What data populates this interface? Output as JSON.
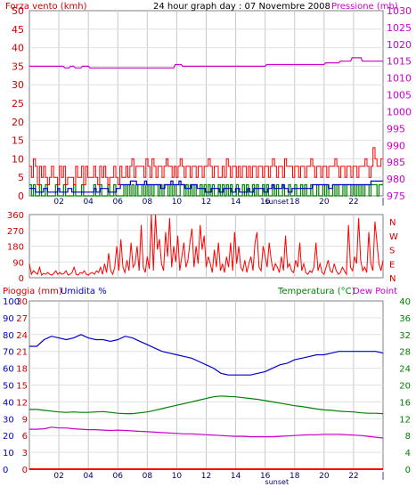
{
  "chart_data": [
    {
      "type": "line",
      "title": "24 hour graph day : 07 Novembre 2008",
      "left_axis_label": "Forza vento (kmh)",
      "right_axis_label": "Pressione (mb)",
      "left_ticks": [
        "0",
        "5",
        "10",
        "15",
        "20",
        "25",
        "30",
        "35",
        "40",
        "45",
        "50"
      ],
      "left_range": [
        0,
        50
      ],
      "right_ticks": [
        "975",
        "980",
        "985",
        "990",
        "995",
        "1000",
        "1005",
        "1010",
        "1015",
        "1020",
        "1025",
        "1030"
      ],
      "right_range": [
        975,
        1030
      ],
      "x_ticks": [
        "02",
        "04",
        "06",
        "08",
        "10",
        "12",
        "14",
        "16",
        "18",
        "20",
        "22",
        "|"
      ],
      "x_range": [
        0,
        24
      ],
      "annotation": "sunset",
      "sunset_hour": 16.9,
      "grid": true,
      "colors": {
        "wind_gust": "#ff0000",
        "wind_avg": "#008000",
        "wind_mean": "#0000cc",
        "pressure": "#cc00cc",
        "left_axis": "#cc0000",
        "right_axis": "#cc00cc"
      },
      "series": [
        {
          "name": "",
          "color": "#cc00cc",
          "axis": "right",
          "x": [
            0,
            2.3,
            2.4,
            2.7,
            2.8,
            3.0,
            3.1,
            3.5,
            3.6,
            4.0,
            4.1,
            9.8,
            9.9,
            10.3,
            10.4,
            16.0,
            16.1,
            20.0,
            20.1,
            21.0,
            21.1,
            21.8,
            21.9,
            22.5,
            22.6,
            24.0
          ],
          "y": [
            1013.5,
            1013.5,
            1013,
            1013,
            1013.5,
            1013.5,
            1013,
            1013,
            1013.5,
            1013.5,
            1013,
            1013,
            1014,
            1014,
            1013.5,
            1013.5,
            1014,
            1014,
            1014.5,
            1014.5,
            1015,
            1015,
            1016,
            1016,
            1015,
            1015
          ]
        }
      ],
      "wind_gust_kmh": [
        8,
        5,
        10,
        8,
        3,
        8,
        5,
        8,
        5,
        3,
        5,
        8,
        5,
        5,
        3,
        8,
        5,
        8,
        3,
        5,
        5,
        5,
        3,
        8,
        5,
        5,
        8,
        3,
        8,
        5,
        5,
        5,
        8,
        5,
        3,
        8,
        5,
        8,
        5,
        3,
        5,
        5,
        8,
        5,
        3,
        8,
        5,
        5,
        8,
        5,
        8,
        10,
        5,
        8,
        8,
        8,
        8,
        5,
        10,
        8,
        5,
        10,
        8,
        5,
        8,
        8,
        5,
        8,
        10,
        8,
        8,
        5,
        8,
        5,
        8,
        10,
        8,
        5,
        8,
        8,
        5,
        8,
        8,
        5,
        8,
        8,
        5,
        8,
        8,
        10,
        8,
        5,
        8,
        8,
        5,
        5,
        8,
        5,
        10,
        8,
        5,
        8,
        8,
        5,
        8,
        5,
        8,
        8,
        5,
        8,
        5,
        8,
        8,
        5,
        8,
        8,
        5,
        8,
        8,
        5,
        8,
        10,
        8,
        5,
        8,
        8,
        5,
        10,
        8,
        8,
        8,
        5,
        8,
        8,
        5,
        8,
        8,
        5,
        8,
        8,
        10,
        8,
        5,
        8,
        8,
        5,
        8,
        8,
        5,
        8,
        8,
        8,
        10,
        8,
        5,
        8,
        8,
        5,
        8,
        8,
        5,
        8,
        8,
        5,
        8,
        8,
        8,
        10,
        8,
        5,
        8,
        13,
        10,
        8,
        8,
        10
      ],
      "wind_avg_kmh": [
        3,
        0,
        3,
        0,
        0,
        3,
        0,
        0,
        3,
        0,
        0,
        0,
        0,
        3,
        0,
        0,
        0,
        3,
        0,
        0,
        0,
        0,
        3,
        0,
        0,
        0,
        3,
        0,
        0,
        0,
        0,
        0,
        3,
        0,
        0,
        3,
        0,
        0,
        0,
        3,
        0,
        0,
        3,
        0,
        0,
        0,
        0,
        3,
        0,
        3,
        0,
        3,
        0,
        3,
        0,
        0,
        3,
        0,
        3,
        0,
        3,
        0,
        3,
        3,
        0,
        3,
        0,
        3,
        3,
        0,
        3,
        0,
        3,
        0,
        0,
        3,
        3,
        0,
        3,
        0,
        3,
        0,
        3,
        0,
        0,
        3,
        0,
        3,
        0,
        3,
        0,
        3,
        0,
        0,
        3,
        0,
        3,
        0,
        3,
        0,
        3,
        0,
        0,
        3,
        0,
        0,
        3,
        0,
        3,
        0,
        0,
        3,
        0,
        3,
        0,
        0,
        3,
        0,
        3,
        0,
        0,
        3,
        0,
        3,
        0,
        0,
        3,
        0,
        0,
        3,
        0,
        0,
        3,
        0,
        0,
        3,
        0,
        3,
        0,
        0,
        3,
        0,
        0,
        3,
        0,
        0,
        3,
        0,
        3,
        0,
        0,
        3,
        0,
        3,
        0,
        0,
        3,
        0,
        3,
        3,
        0,
        3,
        0,
        3,
        0,
        3,
        0,
        3,
        3,
        0,
        3,
        3,
        3,
        0,
        3,
        3
      ],
      "wind_mean_kmh": [
        2,
        2,
        2,
        1,
        1,
        1,
        1,
        2,
        2,
        1,
        1,
        1,
        1,
        1,
        2,
        1,
        1,
        1,
        1,
        2,
        2,
        1,
        1,
        1,
        1,
        1,
        1,
        1,
        1,
        1,
        1,
        1,
        2,
        1,
        1,
        2,
        2,
        2,
        2,
        1,
        1,
        1,
        1,
        2,
        2,
        3,
        3,
        3,
        3,
        3,
        4,
        4,
        4,
        3,
        3,
        3,
        3,
        4,
        3,
        3,
        3,
        3,
        3,
        3,
        3,
        2,
        2,
        3,
        3,
        3,
        4,
        3,
        3,
        3,
        4,
        3,
        3,
        2,
        2,
        2,
        3,
        3,
        3,
        2,
        2,
        2,
        2,
        1,
        1,
        1,
        2,
        2,
        2,
        2,
        1,
        1,
        2,
        2,
        2,
        2,
        1,
        1,
        2,
        2,
        1,
        1,
        1,
        1,
        2,
        1,
        1,
        2,
        2,
        2,
        2,
        2,
        1,
        1,
        2,
        2,
        3,
        2,
        2,
        2,
        2,
        3,
        2,
        2,
        1,
        1,
        2,
        2,
        2,
        2,
        2,
        2,
        2,
        2,
        2,
        2,
        3,
        3,
        3,
        3,
        3,
        3,
        3,
        3,
        2,
        2,
        3,
        3,
        3,
        3,
        3,
        3,
        3,
        3,
        3,
        3,
        3,
        3,
        3,
        3,
        3,
        3,
        3,
        3,
        3,
        4,
        4,
        4,
        4,
        4,
        4
      ]
    },
    {
      "type": "line",
      "title": "",
      "left_ticks": [
        "0",
        "90",
        "180",
        "270",
        "360"
      ],
      "left_range": [
        0,
        360
      ],
      "right_ticks": [
        "N",
        "E",
        "S",
        "W",
        "N"
      ],
      "x_range": [
        0,
        24
      ],
      "grid": true,
      "series": [
        {
          "name": "",
          "color": "#ff0000",
          "y": [
            80,
            20,
            40,
            30,
            20,
            60,
            15,
            25,
            20,
            30,
            20,
            15,
            25,
            40,
            20,
            30,
            20,
            25,
            40,
            15,
            20,
            30,
            60,
            20,
            15,
            30,
            25,
            40,
            20,
            15,
            25,
            30,
            20,
            40,
            30,
            60,
            20,
            80,
            30,
            140,
            40,
            20,
            60,
            180,
            40,
            220,
            60,
            30,
            100,
            40,
            200,
            60,
            80,
            180,
            40,
            300,
            60,
            30,
            120,
            50,
            360,
            40,
            360,
            160,
            220,
            80,
            40,
            260,
            120,
            340,
            60,
            180,
            90,
            240,
            40,
            120,
            200,
            60,
            100,
            200,
            280,
            60,
            180,
            80,
            300,
            160,
            240,
            60,
            120,
            80,
            30,
            160,
            60,
            200,
            40,
            80,
            30,
            120,
            60,
            200,
            40,
            260,
            80,
            180,
            60,
            40,
            100,
            30,
            80,
            120,
            40,
            200,
            260,
            60,
            40,
            180,
            120,
            60,
            200,
            100,
            40,
            80,
            60,
            30,
            120,
            40,
            240,
            60,
            80,
            40,
            30,
            100,
            60,
            200,
            40,
            80,
            30,
            20,
            40,
            30,
            60,
            200,
            40,
            80,
            30,
            20,
            60,
            100,
            40,
            30,
            80,
            40,
            20,
            30,
            60,
            40,
            20,
            300,
            60,
            40,
            120,
            80,
            340,
            100,
            40,
            60,
            30,
            260,
            80,
            40,
            320,
            200,
            80,
            40,
            100
          ]
        }
      ]
    },
    {
      "type": "line",
      "title": "",
      "left_label_1": "Pioggia (mm)",
      "left_label_2": "Umidita %",
      "right_label_1": "Temperatura (°C)",
      "right_label_2": "Dew Point",
      "rain_ticks": [
        "0",
        "3",
        "6",
        "9",
        "12",
        "15",
        "18",
        "21",
        "24",
        "27",
        "30"
      ],
      "rain_range": [
        0,
        30
      ],
      "humidity_ticks": [
        "0",
        "10",
        "20",
        "30",
        "40",
        "50",
        "60",
        "70",
        "80",
        "90",
        "100"
      ],
      "humidity_range": [
        0,
        100
      ],
      "temp_ticks": [
        "0",
        "4",
        "8",
        "12",
        "16",
        "20",
        "24",
        "28",
        "32",
        "36",
        "40"
      ],
      "temp_range": [
        0,
        40
      ],
      "x_ticks": [
        "02",
        "04",
        "06",
        "08",
        "10",
        "12",
        "14",
        "16",
        "18",
        "20",
        "22",
        "|"
      ],
      "x_range": [
        0,
        24
      ],
      "annotation": "sunset",
      "sunset_hour": 16.9,
      "grid": true,
      "colors": {
        "rain": "#ff0000",
        "humidity": "#0000cc",
        "temperature": "#008000",
        "dew_point": "#cc00cc",
        "left_axis_rain": "#cc0000",
        "left_axis_humidity": "#0000cc",
        "right_axis": "#008000"
      },
      "series": [
        {
          "name": "Umidita %",
          "color": "#0000cc",
          "axis": "humidity",
          "x": [
            0,
            0.5,
            1,
            1.5,
            2,
            2.5,
            3,
            3.5,
            4,
            4.5,
            5,
            5.5,
            6,
            6.5,
            7,
            7.5,
            8,
            8.5,
            9,
            9.5,
            10,
            10.5,
            11,
            11.5,
            12,
            12.5,
            13,
            13.5,
            14,
            14.5,
            15,
            15.5,
            16,
            16.5,
            17,
            17.5,
            18,
            18.5,
            19,
            19.5,
            20,
            20.5,
            21,
            21.5,
            22,
            22.5,
            23,
            23.5,
            24
          ],
          "y": [
            73,
            73,
            77,
            79,
            78,
            77,
            78,
            80,
            78,
            77,
            77,
            76,
            77,
            79,
            78,
            76,
            74,
            72,
            70,
            69,
            68,
            67,
            66,
            64,
            62,
            60,
            57,
            56,
            56,
            56,
            56,
            57,
            58,
            60,
            62,
            63,
            65,
            66,
            67,
            68,
            68,
            69,
            70,
            70,
            70,
            70,
            70,
            70,
            69
          ]
        },
        {
          "name": "Temperatura (°C)",
          "color": "#008000",
          "axis": "temp",
          "x": [
            0,
            0.5,
            1,
            1.5,
            2,
            2.5,
            3,
            3.5,
            4,
            4.5,
            5,
            5.5,
            6,
            6.5,
            7,
            7.5,
            8,
            8.5,
            9,
            9.5,
            10,
            10.5,
            11,
            11.5,
            12,
            12.5,
            13,
            13.5,
            14,
            14.5,
            15,
            15.5,
            16,
            16.5,
            17,
            17.5,
            18,
            18.5,
            19,
            19.5,
            20,
            20.5,
            21,
            21.5,
            22,
            22.5,
            23,
            23.5,
            24
          ],
          "y": [
            14.2,
            14.2,
            14,
            13.8,
            13.6,
            13.5,
            13.6,
            13.5,
            13.5,
            13.6,
            13.7,
            13.5,
            13.3,
            13.2,
            13.2,
            13.4,
            13.6,
            14,
            14.4,
            14.8,
            15.2,
            15.6,
            16,
            16.4,
            16.8,
            17.2,
            17.4,
            17.3,
            17.2,
            17,
            16.8,
            16.6,
            16.3,
            16,
            15.7,
            15.4,
            15.1,
            14.9,
            14.6,
            14.3,
            14.1,
            14,
            13.8,
            13.7,
            13.6,
            13.4,
            13.3,
            13.3,
            13.2
          ]
        },
        {
          "name": "Dew Point",
          "color": "#cc00cc",
          "axis": "temp",
          "x": [
            0,
            0.5,
            1,
            1.5,
            2,
            2.5,
            3,
            3.5,
            4,
            4.5,
            5,
            5.5,
            6,
            6.5,
            7,
            7.5,
            8,
            8.5,
            9,
            9.5,
            10,
            10.5,
            11,
            11.5,
            12,
            12.5,
            13,
            13.5,
            14,
            14.5,
            15,
            15.5,
            16,
            16.5,
            17,
            17.5,
            18,
            18.5,
            19,
            19.5,
            20,
            20.5,
            21,
            21.5,
            22,
            22.5,
            23,
            23.5,
            24
          ],
          "y": [
            9.5,
            9.5,
            9.6,
            10,
            9.8,
            9.8,
            9.6,
            9.5,
            9.4,
            9.4,
            9.3,
            9.2,
            9.3,
            9.2,
            9.1,
            9,
            8.9,
            8.8,
            8.7,
            8.6,
            8.5,
            8.4,
            8.4,
            8.3,
            8.2,
            8.1,
            8,
            7.9,
            7.8,
            7.8,
            7.7,
            7.7,
            7.7,
            7.7,
            7.8,
            7.9,
            8,
            8.1,
            8.2,
            8.2,
            8.3,
            8.3,
            8.3,
            8.2,
            8.1,
            8,
            7.8,
            7.6,
            7.4
          ]
        },
        {
          "name": "Pioggia (mm)",
          "color": "#ff0000",
          "axis": "rain",
          "x": [
            0,
            24
          ],
          "y": [
            0,
            0
          ]
        }
      ]
    }
  ]
}
